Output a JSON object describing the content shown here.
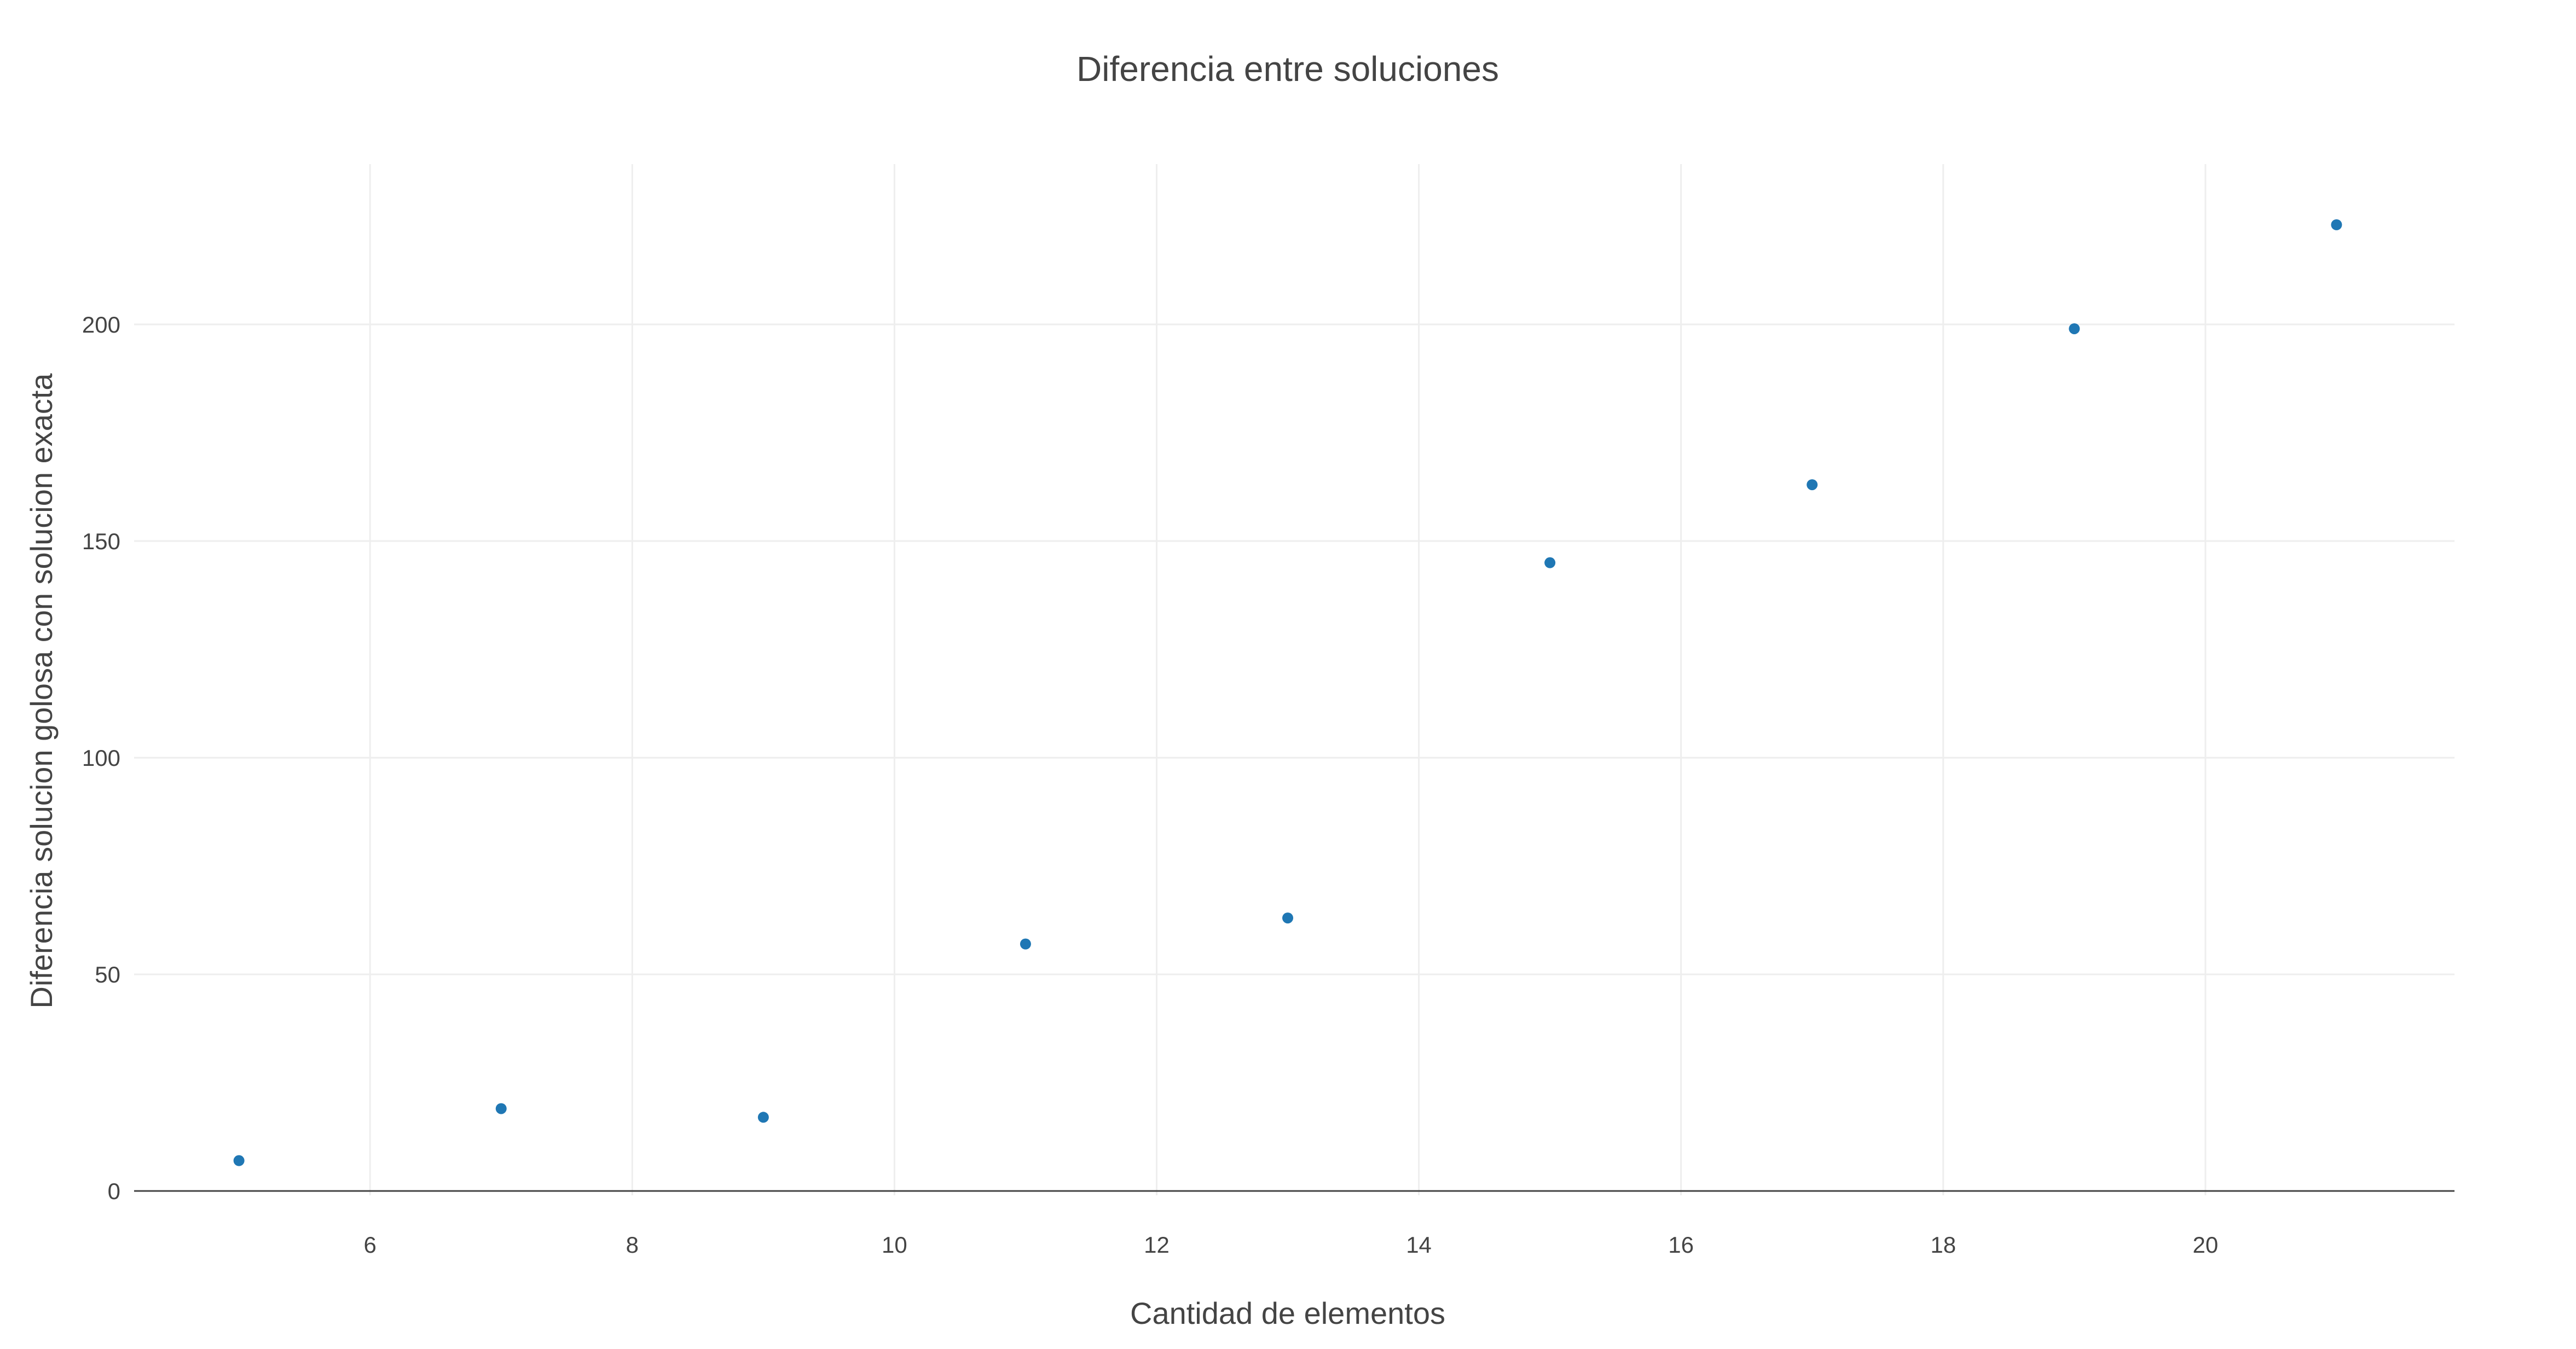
{
  "chart_data": {
    "type": "scatter",
    "title": "Diferencia entre soluciones",
    "xlabel": "Cantidad de elementos",
    "ylabel": "Diferencia solucion golosa con solucion exacta",
    "xlim": [
      4.2,
      21.9
    ],
    "ylim": [
      -1,
      237
    ],
    "xticks": [
      6,
      8,
      10,
      12,
      14,
      16,
      18,
      20
    ],
    "yticks": [
      0,
      50,
      100,
      150,
      200
    ],
    "grid": true,
    "marker_color": "#1f77b4",
    "series": [
      {
        "x": [
          5,
          7,
          9,
          11,
          13,
          15,
          17,
          19,
          21
        ],
        "y": [
          7,
          19,
          17,
          57,
          63,
          145,
          163,
          199,
          223
        ]
      }
    ]
  }
}
